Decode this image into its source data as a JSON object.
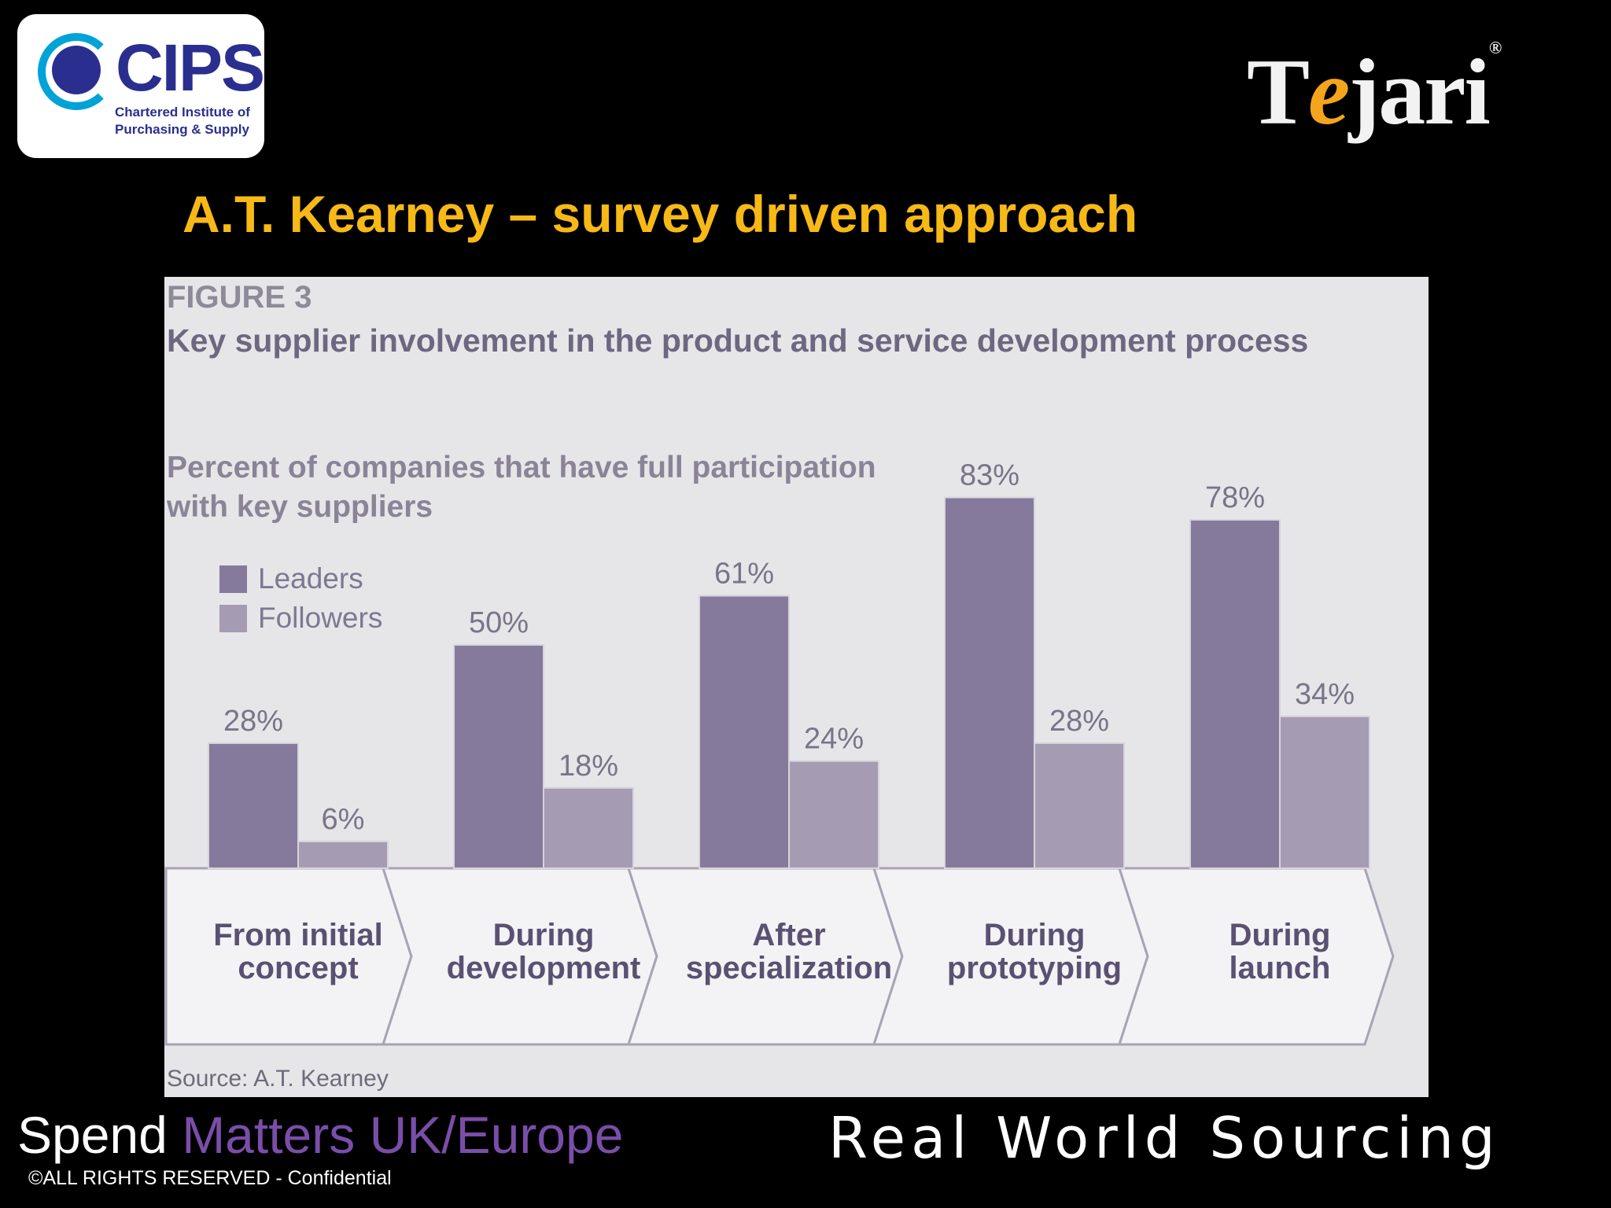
{
  "header": {
    "cips_logo": {
      "name": "CIPS",
      "subtitle": "Chartered Institute of\nPurchasing & Supply",
      "icon": "cips-swirl-icon"
    },
    "tejari_logo": {
      "text_before": "T",
      "accent_letter": "e",
      "text_after": "jari",
      "mark": "®"
    }
  },
  "slide": {
    "title": "A.T. Kearney – survey driven approach"
  },
  "figure": {
    "label": "FIGURE 3",
    "title": "Key supplier involvement in the product and service development process",
    "subtitle": "Percent of companies that have full participation\nwith key suppliers",
    "source": "Source: A.T. Kearney"
  },
  "chart_data": {
    "type": "bar",
    "categories": [
      "From initial concept",
      "During development",
      "After specialization",
      "During prototyping",
      "During launch"
    ],
    "series": [
      {
        "name": "Leaders",
        "values": [
          28,
          50,
          61,
          83,
          78
        ],
        "color": "#857a9b"
      },
      {
        "name": "Followers",
        "values": [
          6,
          18,
          24,
          28,
          34
        ],
        "color": "#a59cb3"
      }
    ],
    "data_labels": [
      [
        "28%",
        "50%",
        "61%",
        "83%",
        "78%"
      ],
      [
        "6%",
        "18%",
        "24%",
        "28%",
        "34%"
      ]
    ],
    "ylim": [
      0,
      100
    ],
    "grid": false,
    "legend_position": "top-left",
    "label_color": "#5a5172",
    "value_label_color": "#7a7488"
  },
  "footer": {
    "left_main": "Spend",
    "left_accent": "Matters UK/Europe",
    "copyright": "©ALL RIGHTS RESERVED - Confidential",
    "right": "Real World Sourcing"
  }
}
